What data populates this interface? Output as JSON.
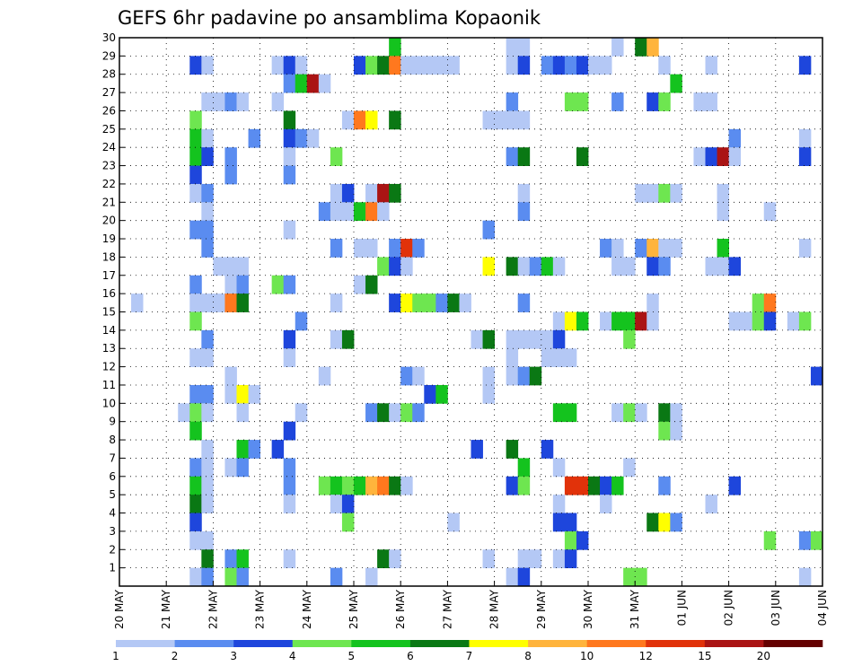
{
  "chart_data": {
    "type": "heatmap",
    "title": "GEFS 6hr padavine po ansamblima Kopaonik",
    "xlabel": "",
    "ylabel": "",
    "x_ticks": [
      "20 MAY",
      "21 MAY",
      "22 MAY",
      "23 MAY",
      "24 MAY",
      "25 MAY",
      "26 MAY",
      "27 MAY",
      "28 MAY",
      "29 MAY",
      "30 MAY",
      "31 MAY",
      "01 JUN",
      "02 JUN",
      "03 JUN",
      "04 JUN"
    ],
    "y_ticks": [
      1,
      2,
      3,
      4,
      5,
      6,
      7,
      8,
      9,
      10,
      11,
      12,
      13,
      14,
      15,
      16,
      17,
      18,
      19,
      20,
      21,
      22,
      23,
      24,
      25,
      26,
      27,
      28,
      29,
      30
    ],
    "ylim": [
      0,
      30
    ],
    "x_steps_per_day": 4,
    "x_steps_total": 60,
    "grid": "dotted",
    "legend": {
      "placement": "bottom",
      "labels": [
        "1",
        "2",
        "3",
        "4",
        "5",
        "6",
        "7",
        "8",
        "10",
        "12",
        "15",
        "20"
      ],
      "colors": [
        "#b4c8f5",
        "#5a8cf0",
        "#1e46dc",
        "#6ee650",
        "#14c31e",
        "#0a7814",
        "#ffff00",
        "#ffb43c",
        "#ff781e",
        "#e1320a",
        "#aa1414",
        "#640000"
      ]
    },
    "cells_format": "[ensemble_member, x_step, color_class]",
    "cells": [
      [
        30,
        23,
        5
      ],
      [
        30,
        33,
        1
      ],
      [
        30,
        34,
        1
      ],
      [
        30,
        42,
        1
      ],
      [
        30,
        44,
        6
      ],
      [
        30,
        45,
        8
      ],
      [
        29,
        6,
        3
      ],
      [
        29,
        7,
        1
      ],
      [
        29,
        13,
        1
      ],
      [
        29,
        14,
        3
      ],
      [
        29,
        15,
        1
      ],
      [
        29,
        20,
        3
      ],
      [
        29,
        21,
        4
      ],
      [
        29,
        22,
        6
      ],
      [
        29,
        23,
        9
      ],
      [
        29,
        24,
        1
      ],
      [
        29,
        25,
        1
      ],
      [
        29,
        26,
        1
      ],
      [
        29,
        27,
        1
      ],
      [
        29,
        28,
        1
      ],
      [
        29,
        33,
        1
      ],
      [
        29,
        34,
        3
      ],
      [
        29,
        36,
        2
      ],
      [
        29,
        37,
        3
      ],
      [
        29,
        38,
        2
      ],
      [
        29,
        39,
        3
      ],
      [
        29,
        40,
        1
      ],
      [
        29,
        41,
        1
      ],
      [
        29,
        46,
        1
      ],
      [
        29,
        50,
        1
      ],
      [
        29,
        58,
        3
      ],
      [
        28,
        14,
        2
      ],
      [
        28,
        15,
        5
      ],
      [
        28,
        16,
        11
      ],
      [
        28,
        17,
        1
      ],
      [
        28,
        47,
        5
      ],
      [
        27,
        7,
        1
      ],
      [
        27,
        8,
        1
      ],
      [
        27,
        9,
        2
      ],
      [
        27,
        10,
        1
      ],
      [
        27,
        13,
        1
      ],
      [
        27,
        33,
        2
      ],
      [
        27,
        38,
        4
      ],
      [
        27,
        39,
        4
      ],
      [
        27,
        42,
        2
      ],
      [
        27,
        45,
        3
      ],
      [
        27,
        46,
        4
      ],
      [
        27,
        49,
        1
      ],
      [
        27,
        50,
        1
      ],
      [
        26,
        6,
        4
      ],
      [
        26,
        14,
        6
      ],
      [
        26,
        19,
        1
      ],
      [
        26,
        20,
        9
      ],
      [
        26,
        21,
        7
      ],
      [
        26,
        23,
        6
      ],
      [
        26,
        31,
        1
      ],
      [
        26,
        32,
        1
      ],
      [
        26,
        33,
        1
      ],
      [
        26,
        34,
        1
      ],
      [
        25,
        6,
        5
      ],
      [
        25,
        7,
        1
      ],
      [
        25,
        11,
        2
      ],
      [
        25,
        14,
        3
      ],
      [
        25,
        15,
        2
      ],
      [
        25,
        16,
        1
      ],
      [
        25,
        52,
        2
      ],
      [
        25,
        58,
        1
      ],
      [
        24,
        6,
        5
      ],
      [
        24,
        7,
        3
      ],
      [
        24,
        9,
        2
      ],
      [
        24,
        14,
        1
      ],
      [
        24,
        18,
        4
      ],
      [
        24,
        33,
        2
      ],
      [
        24,
        34,
        6
      ],
      [
        24,
        39,
        6
      ],
      [
        24,
        49,
        1
      ],
      [
        24,
        50,
        3
      ],
      [
        24,
        51,
        11
      ],
      [
        24,
        52,
        1
      ],
      [
        24,
        58,
        3
      ],
      [
        23,
        6,
        3
      ],
      [
        23,
        9,
        2
      ],
      [
        23,
        14,
        2
      ],
      [
        22,
        6,
        1
      ],
      [
        22,
        7,
        2
      ],
      [
        22,
        18,
        1
      ],
      [
        22,
        19,
        3
      ],
      [
        22,
        21,
        1
      ],
      [
        22,
        22,
        11
      ],
      [
        22,
        23,
        6
      ],
      [
        22,
        34,
        1
      ],
      [
        22,
        44,
        1
      ],
      [
        22,
        45,
        1
      ],
      [
        22,
        46,
        4
      ],
      [
        22,
        47,
        1
      ],
      [
        22,
        51,
        1
      ],
      [
        21,
        7,
        1
      ],
      [
        21,
        17,
        2
      ],
      [
        21,
        18,
        1
      ],
      [
        21,
        19,
        1
      ],
      [
        21,
        20,
        5
      ],
      [
        21,
        21,
        9
      ],
      [
        21,
        22,
        1
      ],
      [
        21,
        34,
        2
      ],
      [
        21,
        51,
        1
      ],
      [
        21,
        55,
        1
      ],
      [
        20,
        6,
        2
      ],
      [
        20,
        7,
        2
      ],
      [
        20,
        14,
        1
      ],
      [
        20,
        31,
        2
      ],
      [
        19,
        7,
        2
      ],
      [
        19,
        18,
        2
      ],
      [
        19,
        20,
        1
      ],
      [
        19,
        21,
        1
      ],
      [
        19,
        23,
        2
      ],
      [
        19,
        24,
        10
      ],
      [
        19,
        25,
        2
      ],
      [
        19,
        41,
        2
      ],
      [
        19,
        42,
        1
      ],
      [
        19,
        44,
        2
      ],
      [
        19,
        45,
        8
      ],
      [
        19,
        46,
        1
      ],
      [
        19,
        47,
        1
      ],
      [
        19,
        51,
        5
      ],
      [
        19,
        58,
        1
      ],
      [
        18,
        8,
        1
      ],
      [
        18,
        9,
        1
      ],
      [
        18,
        10,
        1
      ],
      [
        18,
        22,
        4
      ],
      [
        18,
        23,
        3
      ],
      [
        18,
        24,
        1
      ],
      [
        18,
        31,
        7
      ],
      [
        18,
        33,
        6
      ],
      [
        18,
        34,
        1
      ],
      [
        18,
        35,
        2
      ],
      [
        18,
        36,
        5
      ],
      [
        18,
        37,
        1
      ],
      [
        18,
        42,
        1
      ],
      [
        18,
        43,
        1
      ],
      [
        18,
        45,
        3
      ],
      [
        18,
        46,
        2
      ],
      [
        18,
        50,
        1
      ],
      [
        18,
        51,
        1
      ],
      [
        18,
        52,
        3
      ],
      [
        17,
        6,
        2
      ],
      [
        17,
        9,
        1
      ],
      [
        17,
        10,
        2
      ],
      [
        17,
        13,
        4
      ],
      [
        17,
        14,
        2
      ],
      [
        17,
        20,
        1
      ],
      [
        17,
        21,
        6
      ],
      [
        16,
        1,
        1
      ],
      [
        16,
        6,
        1
      ],
      [
        16,
        7,
        1
      ],
      [
        16,
        8,
        1
      ],
      [
        16,
        9,
        9
      ],
      [
        16,
        10,
        6
      ],
      [
        16,
        18,
        1
      ],
      [
        16,
        23,
        3
      ],
      [
        16,
        24,
        7
      ],
      [
        16,
        25,
        4
      ],
      [
        16,
        26,
        4
      ],
      [
        16,
        27,
        2
      ],
      [
        16,
        28,
        6
      ],
      [
        16,
        29,
        1
      ],
      [
        16,
        34,
        2
      ],
      [
        16,
        45,
        1
      ],
      [
        16,
        54,
        4
      ],
      [
        16,
        55,
        9
      ],
      [
        15,
        6,
        4
      ],
      [
        15,
        15,
        2
      ],
      [
        15,
        37,
        1
      ],
      [
        15,
        38,
        7
      ],
      [
        15,
        39,
        5
      ],
      [
        15,
        41,
        1
      ],
      [
        15,
        42,
        5
      ],
      [
        15,
        43,
        5
      ],
      [
        15,
        44,
        11
      ],
      [
        15,
        45,
        1
      ],
      [
        15,
        52,
        1
      ],
      [
        15,
        53,
        1
      ],
      [
        15,
        54,
        4
      ],
      [
        15,
        55,
        3
      ],
      [
        15,
        57,
        1
      ],
      [
        15,
        58,
        4
      ],
      [
        14,
        7,
        2
      ],
      [
        14,
        14,
        3
      ],
      [
        14,
        18,
        1
      ],
      [
        14,
        19,
        6
      ],
      [
        14,
        30,
        1
      ],
      [
        14,
        31,
        6
      ],
      [
        14,
        33,
        1
      ],
      [
        14,
        34,
        1
      ],
      [
        14,
        35,
        1
      ],
      [
        14,
        36,
        1
      ],
      [
        14,
        37,
        3
      ],
      [
        14,
        43,
        4
      ],
      [
        13,
        6,
        1
      ],
      [
        13,
        7,
        1
      ],
      [
        13,
        14,
        1
      ],
      [
        13,
        33,
        1
      ],
      [
        13,
        36,
        1
      ],
      [
        13,
        37,
        1
      ],
      [
        13,
        38,
        1
      ],
      [
        12,
        9,
        1
      ],
      [
        12,
        17,
        1
      ],
      [
        12,
        24,
        2
      ],
      [
        12,
        25,
        1
      ],
      [
        12,
        31,
        1
      ],
      [
        12,
        33,
        1
      ],
      [
        12,
        34,
        2
      ],
      [
        12,
        35,
        6
      ],
      [
        12,
        59,
        3
      ],
      [
        11,
        6,
        2
      ],
      [
        11,
        7,
        2
      ],
      [
        11,
        9,
        1
      ],
      [
        11,
        10,
        7
      ],
      [
        11,
        11,
        1
      ],
      [
        11,
        26,
        3
      ],
      [
        11,
        27,
        5
      ],
      [
        11,
        31,
        1
      ],
      [
        10,
        5,
        1
      ],
      [
        10,
        6,
        4
      ],
      [
        10,
        7,
        1
      ],
      [
        10,
        10,
        1
      ],
      [
        10,
        15,
        1
      ],
      [
        10,
        21,
        2
      ],
      [
        10,
        22,
        6
      ],
      [
        10,
        23,
        1
      ],
      [
        10,
        24,
        4
      ],
      [
        10,
        25,
        2
      ],
      [
        10,
        37,
        5
      ],
      [
        10,
        38,
        5
      ],
      [
        10,
        42,
        1
      ],
      [
        10,
        43,
        4
      ],
      [
        10,
        44,
        1
      ],
      [
        10,
        46,
        6
      ],
      [
        10,
        47,
        1
      ],
      [
        9,
        6,
        5
      ],
      [
        9,
        14,
        3
      ],
      [
        9,
        46,
        4
      ],
      [
        9,
        47,
        1
      ],
      [
        8,
        7,
        1
      ],
      [
        8,
        10,
        5
      ],
      [
        8,
        11,
        2
      ],
      [
        8,
        13,
        3
      ],
      [
        8,
        30,
        3
      ],
      [
        8,
        33,
        6
      ],
      [
        8,
        36,
        3
      ],
      [
        7,
        6,
        2
      ],
      [
        7,
        7,
        1
      ],
      [
        7,
        9,
        1
      ],
      [
        7,
        10,
        2
      ],
      [
        7,
        14,
        2
      ],
      [
        7,
        34,
        5
      ],
      [
        7,
        37,
        1
      ],
      [
        7,
        43,
        1
      ],
      [
        6,
        6,
        5
      ],
      [
        6,
        7,
        1
      ],
      [
        6,
        14,
        2
      ],
      [
        6,
        17,
        4
      ],
      [
        6,
        18,
        5
      ],
      [
        6,
        19,
        4
      ],
      [
        6,
        20,
        5
      ],
      [
        6,
        21,
        8
      ],
      [
        6,
        22,
        9
      ],
      [
        6,
        23,
        6
      ],
      [
        6,
        24,
        1
      ],
      [
        6,
        33,
        3
      ],
      [
        6,
        34,
        4
      ],
      [
        6,
        38,
        10
      ],
      [
        6,
        39,
        10
      ],
      [
        6,
        40,
        6
      ],
      [
        6,
        41,
        3
      ],
      [
        6,
        42,
        5
      ],
      [
        6,
        46,
        2
      ],
      [
        6,
        52,
        3
      ],
      [
        5,
        6,
        6
      ],
      [
        5,
        7,
        1
      ],
      [
        5,
        14,
        1
      ],
      [
        5,
        18,
        1
      ],
      [
        5,
        19,
        3
      ],
      [
        5,
        37,
        1
      ],
      [
        5,
        41,
        1
      ],
      [
        5,
        50,
        1
      ],
      [
        4,
        6,
        3
      ],
      [
        4,
        19,
        4
      ],
      [
        4,
        28,
        1
      ],
      [
        4,
        37,
        3
      ],
      [
        4,
        38,
        3
      ],
      [
        4,
        45,
        6
      ],
      [
        4,
        46,
        7
      ],
      [
        4,
        47,
        2
      ],
      [
        3,
        6,
        1
      ],
      [
        3,
        7,
        1
      ],
      [
        3,
        38,
        4
      ],
      [
        3,
        39,
        3
      ],
      [
        3,
        55,
        4
      ],
      [
        3,
        58,
        2
      ],
      [
        3,
        59,
        4
      ],
      [
        2,
        7,
        6
      ],
      [
        2,
        9,
        2
      ],
      [
        2,
        10,
        5
      ],
      [
        2,
        14,
        1
      ],
      [
        2,
        22,
        6
      ],
      [
        2,
        23,
        1
      ],
      [
        2,
        31,
        1
      ],
      [
        2,
        34,
        1
      ],
      [
        2,
        35,
        1
      ],
      [
        2,
        37,
        1
      ],
      [
        2,
        38,
        3
      ],
      [
        1,
        6,
        1
      ],
      [
        1,
        7,
        2
      ],
      [
        1,
        9,
        4
      ],
      [
        1,
        10,
        2
      ],
      [
        1,
        18,
        2
      ],
      [
        1,
        21,
        1
      ],
      [
        1,
        33,
        1
      ],
      [
        1,
        34,
        3
      ],
      [
        1,
        43,
        4
      ],
      [
        1,
        44,
        4
      ],
      [
        1,
        58,
        1
      ]
    ]
  }
}
